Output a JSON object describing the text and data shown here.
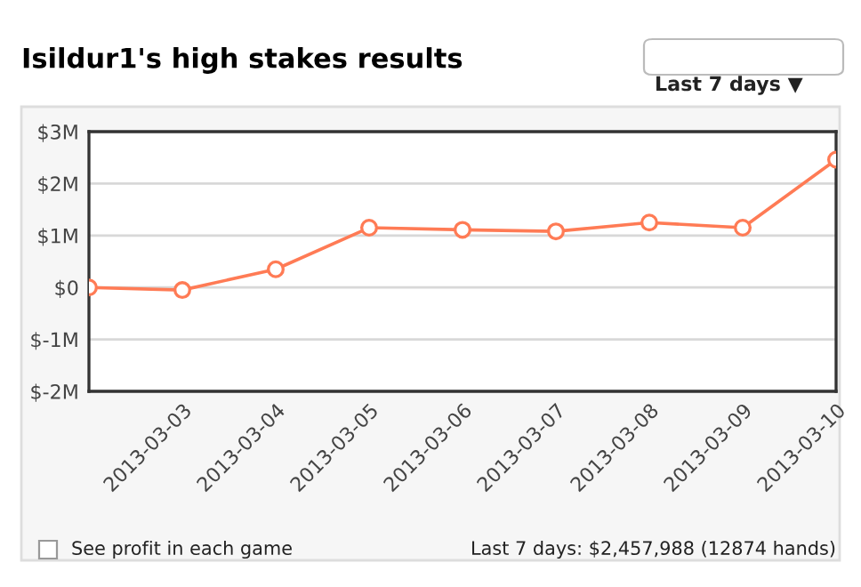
{
  "chart_data": {
    "type": "line",
    "title": "Isildur1's high stakes results",
    "annotations": [
      "Last 7 days ▼",
      "See profit in each game",
      "Last 7 days: $2,457,988 (12874 hands)"
    ],
    "x": [
      "2013-03-02",
      "2013-03-03",
      "2013-03-04",
      "2013-03-05",
      "2013-03-06",
      "2013-03-07",
      "2013-03-08",
      "2013-03-09",
      "2013-03-10"
    ],
    "series": [
      {
        "color": "#ff7b55",
        "values": [
          0,
          -0.05,
          0.35,
          1.15,
          1.11,
          1.08,
          1.25,
          1.15,
          2.46
        ]
      }
    ],
    "xlim": [
      "2013-03-02",
      "2013-03-10"
    ],
    "xticks": [
      "2013-03-03",
      "2013-03-04",
      "2013-03-05",
      "2013-03-06",
      "2013-03-07",
      "2013-03-08",
      "2013-03-09",
      "2013-03-10"
    ],
    "ylim": [
      -2,
      3
    ],
    "yticks": [
      {
        "value": -2,
        "label": "$-2M"
      },
      {
        "value": -1,
        "label": "$-1M"
      },
      {
        "value": 0,
        "label": "$0"
      },
      {
        "value": 1,
        "label": "$1M"
      },
      {
        "value": 2,
        "label": "$2M"
      },
      {
        "value": 3,
        "label": "$3M"
      }
    ],
    "grid": "y",
    "marker": "circle",
    "line_style": "solid",
    "legend": false
  }
}
